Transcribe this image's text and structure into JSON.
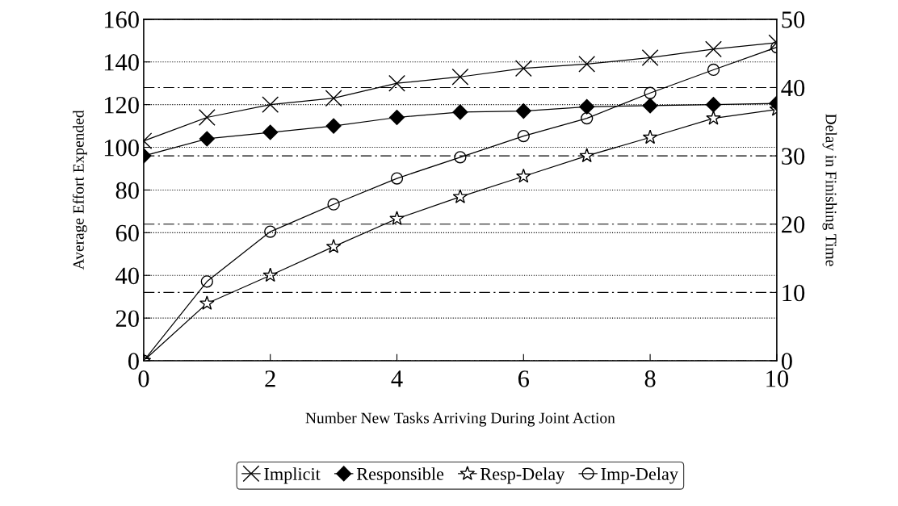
{
  "chart_data": {
    "type": "line",
    "xlabel": "Number New Tasks Arriving During Joint Action",
    "ylabel": "Average Effort Expended",
    "y2label": "Delay in Finishing Time",
    "x": [
      0,
      1,
      2,
      3,
      4,
      5,
      6,
      7,
      8,
      9,
      10
    ],
    "series": [
      {
        "name": "Implicit",
        "color": "#000000",
        "marker": "cross",
        "values": [
          103,
          114,
          120,
          123,
          130,
          133,
          137,
          139,
          142,
          146,
          149
        ]
      },
      {
        "name": "Responsible",
        "color": "#000000",
        "marker": "diamond",
        "values": [
          96,
          104,
          107,
          110,
          114,
          116.5,
          117,
          119,
          119.5,
          120,
          120.6
        ]
      },
      {
        "name": "Resp-Delay",
        "color": "#000000",
        "marker": "star",
        "axis": "y2",
        "values": [
          0,
          8.4,
          12.5,
          16.7,
          20.8,
          24,
          27,
          30,
          32.7,
          35.5,
          36.8
        ]
      },
      {
        "name": "Imp-Delay",
        "color": "#000000",
        "marker": "circle",
        "axis": "y2",
        "values": [
          0,
          11.6,
          18.9,
          22.9,
          26.7,
          29.8,
          32.9,
          35.5,
          39.2,
          42.6,
          45.9
        ]
      }
    ],
    "xlim": [
      0,
      10
    ],
    "xticks": [
      0,
      2,
      4,
      6,
      8,
      10
    ],
    "ylim": [
      0,
      160
    ],
    "yticks": [
      0,
      20,
      40,
      60,
      80,
      100,
      120,
      140,
      160
    ],
    "y2lim": [
      0,
      50
    ],
    "y2ticks": [
      0,
      10,
      20,
      30,
      40,
      50
    ],
    "grid": "y",
    "legend": "bottom",
    "line_style": "solid"
  }
}
